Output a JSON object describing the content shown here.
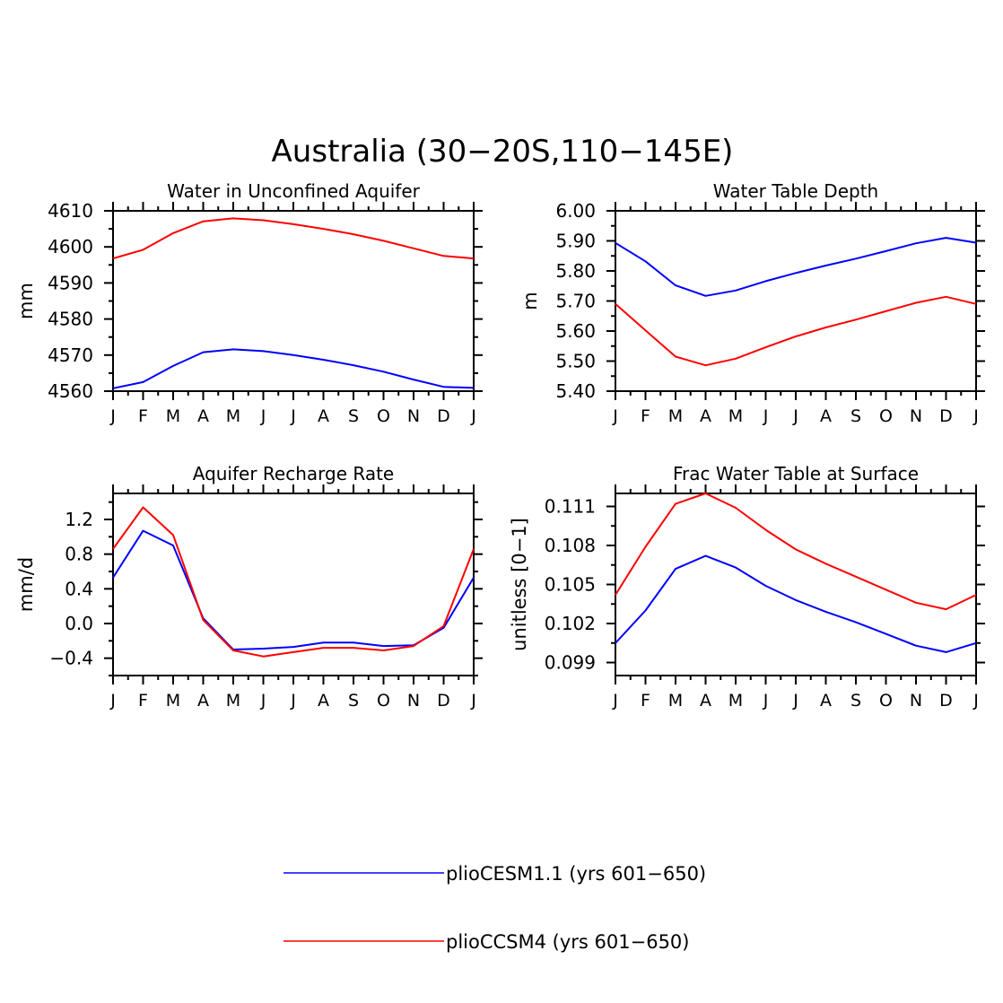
{
  "figure_title": "Australia (30−20S,110−145E)",
  "colors": {
    "blue": "#0000ff",
    "red": "#ff0000"
  },
  "legend": [
    {
      "label": "plioCESM1.1 (yrs 601−650)",
      "color": "#0000ff"
    },
    {
      "label": "plioCCSM4 (yrs 601−650)",
      "color": "#ff0000"
    }
  ],
  "chart_data": [
    {
      "type": "line",
      "title": "Water in Unconfined Aquifer",
      "ylabel": "mm",
      "xlabel": "",
      "x": [
        "J",
        "F",
        "M",
        "A",
        "M",
        "J",
        "J",
        "A",
        "S",
        "O",
        "N",
        "D",
        "J"
      ],
      "ylim": [
        4560,
        4610
      ],
      "yticks": [
        "4560",
        "4570",
        "4580",
        "4590",
        "4600",
        "4610"
      ],
      "series": [
        {
          "name": "plioCESM1.1 (yrs 601−650)",
          "color": "#0000ff",
          "values": [
            4560.8,
            4562.5,
            4567.0,
            4570.8,
            4571.6,
            4571.1,
            4570.0,
            4568.7,
            4567.2,
            4565.4,
            4563.2,
            4561.2,
            4560.9
          ]
        },
        {
          "name": "plioCCSM4 (yrs 601−650)",
          "color": "#ff0000",
          "values": [
            4596.8,
            4599.2,
            4603.8,
            4607.1,
            4607.9,
            4607.4,
            4606.3,
            4605.0,
            4603.5,
            4601.7,
            4599.6,
            4597.5,
            4596.8
          ]
        }
      ]
    },
    {
      "type": "line",
      "title": "Water Table Depth",
      "ylabel": "m",
      "xlabel": "",
      "x": [
        "J",
        "F",
        "M",
        "A",
        "M",
        "J",
        "J",
        "A",
        "S",
        "O",
        "N",
        "D",
        "J"
      ],
      "ylim": [
        5.4,
        6.0
      ],
      "yticks": [
        "5.40",
        "5.50",
        "5.60",
        "5.70",
        "5.80",
        "5.90",
        "6.00"
      ],
      "series": [
        {
          "name": "plioCESM1.1 (yrs 601−650)",
          "color": "#0000ff",
          "values": [
            5.893,
            5.832,
            5.752,
            5.717,
            5.735,
            5.766,
            5.793,
            5.818,
            5.841,
            5.866,
            5.892,
            5.91,
            5.894
          ]
        },
        {
          "name": "plioCCSM4 (yrs 601−650)",
          "color": "#ff0000",
          "values": [
            5.69,
            5.602,
            5.515,
            5.486,
            5.508,
            5.546,
            5.582,
            5.612,
            5.638,
            5.666,
            5.694,
            5.714,
            5.69
          ]
        }
      ]
    },
    {
      "type": "line",
      "title": "Aquifer Recharge Rate",
      "ylabel": "mm/d",
      "xlabel": "",
      "x": [
        "J",
        "F",
        "M",
        "A",
        "M",
        "J",
        "J",
        "A",
        "S",
        "O",
        "N",
        "D",
        "J"
      ],
      "ylim": [
        -0.6,
        1.5
      ],
      "yticks": [
        "−0.4",
        "0.0",
        "0.4",
        "0.8",
        "1.2"
      ],
      "ytick_values": [
        -0.4,
        0.0,
        0.4,
        0.8,
        1.2
      ],
      "series": [
        {
          "name": "plioCESM1.1 (yrs 601−650)",
          "color": "#0000ff",
          "values": [
            0.53,
            1.07,
            0.9,
            0.06,
            -0.3,
            -0.29,
            -0.27,
            -0.22,
            -0.22,
            -0.26,
            -0.25,
            -0.05,
            0.53
          ]
        },
        {
          "name": "plioCCSM4 (yrs 601−650)",
          "color": "#ff0000",
          "values": [
            0.86,
            1.34,
            1.02,
            0.04,
            -0.31,
            -0.38,
            -0.33,
            -0.28,
            -0.28,
            -0.31,
            -0.26,
            -0.03,
            0.86
          ]
        }
      ]
    },
    {
      "type": "line",
      "title": "Frac Water Table at Surface",
      "ylabel": "unitless [0−1]",
      "xlabel": "",
      "x": [
        "J",
        "F",
        "M",
        "A",
        "M",
        "J",
        "J",
        "A",
        "S",
        "O",
        "N",
        "D",
        "J"
      ],
      "ylim": [
        0.098,
        0.112
      ],
      "yticks": [
        "0.099",
        "0.102",
        "0.105",
        "0.108",
        "0.111"
      ],
      "ytick_values": [
        0.099,
        0.102,
        0.105,
        0.108,
        0.111
      ],
      "series": [
        {
          "name": "plioCESM1.1 (yrs 601−650)",
          "color": "#0000ff",
          "values": [
            0.1005,
            0.103,
            0.1062,
            0.1072,
            0.1063,
            0.1049,
            0.1038,
            0.1029,
            0.1021,
            0.1012,
            0.1003,
            0.0998,
            0.1005
          ]
        },
        {
          "name": "plioCCSM4 (yrs 601−650)",
          "color": "#ff0000",
          "values": [
            0.1042,
            0.1079,
            0.1112,
            0.112,
            0.1109,
            0.1092,
            0.1077,
            0.1066,
            0.1056,
            0.1046,
            0.1036,
            0.1031,
            0.1042
          ]
        }
      ]
    }
  ]
}
